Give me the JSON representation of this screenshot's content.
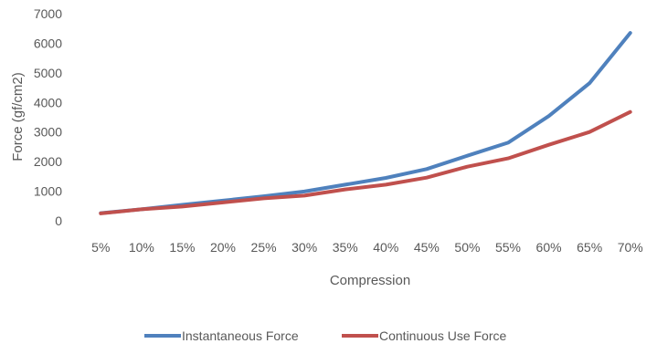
{
  "chart_data": {
    "type": "line",
    "categories": [
      "5%",
      "10%",
      "15%",
      "20%",
      "25%",
      "30%",
      "35%",
      "40%",
      "45%",
      "50%",
      "55%",
      "60%",
      "65%",
      "70%"
    ],
    "series": [
      {
        "name": "Instantaneous Force",
        "color": "#4F81BD",
        "values": [
          260,
          390,
          540,
          680,
          830,
          990,
          1220,
          1450,
          1750,
          2200,
          2640,
          3540,
          4650,
          6350
        ]
      },
      {
        "name": "Continuous Use Force",
        "color": "#C0504D",
        "values": [
          250,
          390,
          480,
          620,
          760,
          850,
          1060,
          1220,
          1460,
          1830,
          2110,
          2570,
          3000,
          3680
        ]
      }
    ],
    "xlabel": "Compression",
    "ylabel": "Force (gf/cm2)",
    "ylim": [
      0,
      7000
    ],
    "yticks": [
      "0",
      "1000",
      "2000",
      "3000",
      "4000",
      "5000",
      "6000",
      "7000"
    ],
    "grid": false,
    "legend": "bottom"
  }
}
